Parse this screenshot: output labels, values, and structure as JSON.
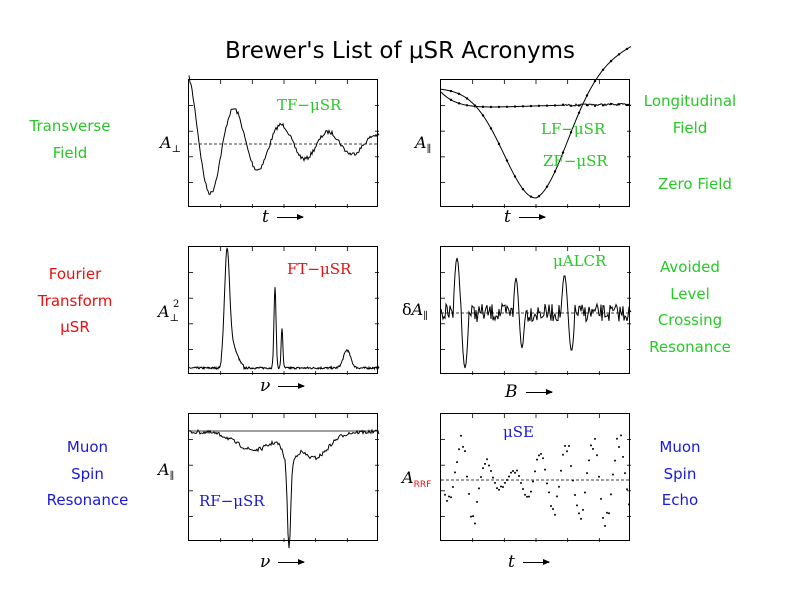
{
  "title": "Brewer's List of μSR Acronyms",
  "colors": {
    "green": "#27c827",
    "red": "#e81010",
    "blue": "#1919d8"
  },
  "left_labels": {
    "tf": [
      "Transverse",
      "Field"
    ],
    "ft": [
      "Fourier",
      "Transform",
      "μSR"
    ],
    "rf": [
      "Muon",
      "Spin",
      "Resonance"
    ]
  },
  "right_labels": {
    "lf": [
      "Longitudinal",
      "Field"
    ],
    "zf": "Zero Field",
    "alcr": [
      "Avoided",
      "Level",
      "Crossing",
      "Resonance"
    ],
    "se": [
      "Muon",
      "Spin",
      "Echo"
    ]
  },
  "panels": {
    "tf": {
      "label": "TF−μSR",
      "ylabel": "A",
      "ysub": "⊥",
      "xlabel": "t"
    },
    "lfzf": {
      "label_lf": "LF−μSR",
      "label_zf": "ZF−μSR",
      "ylabel": "A",
      "ysub": "∥",
      "xlabel": "t"
    },
    "ft": {
      "label": "FT−μSR",
      "ylabel": "A",
      "ysub": "⊥",
      "ysup": "2",
      "xlabel": "ν"
    },
    "alcr": {
      "label": "μALCR",
      "ylabel_prefix": "δ",
      "ylabel": "A",
      "ysub": "∥",
      "xlabel": "B"
    },
    "rf": {
      "label": "RF−μSR",
      "ylabel": "A",
      "ysub": "∥",
      "xlabel": "ν"
    },
    "se": {
      "label": "μSE",
      "ylabel": "A",
      "ysub": "RRF",
      "xlabel": "t"
    }
  }
}
